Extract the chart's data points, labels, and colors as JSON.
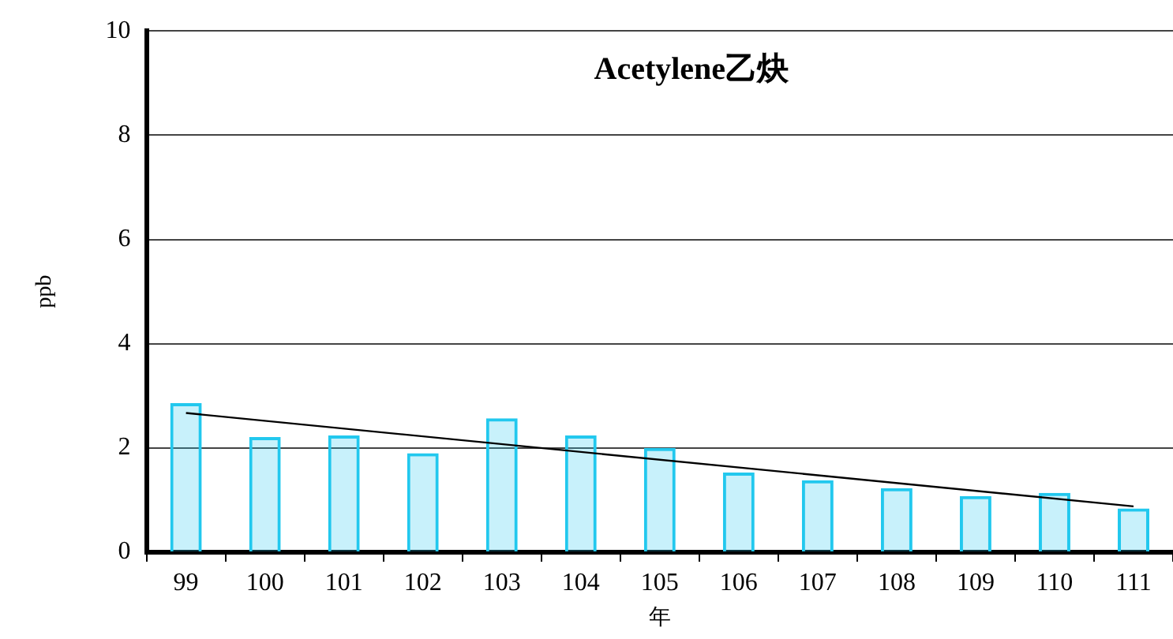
{
  "chart_data": {
    "type": "bar",
    "title": "Acetylene乙炔",
    "xlabel": "年",
    "ylabel": "ppb",
    "categories": [
      "99",
      "100",
      "101",
      "102",
      "103",
      "104",
      "105",
      "106",
      "107",
      "108",
      "109",
      "110",
      "111"
    ],
    "series": [
      {
        "color": "#22c8ee",
        "values": [
          2.86,
          2.21,
          2.24,
          1.9,
          2.57,
          2.24,
          2.0,
          1.53,
          1.38,
          1.23,
          1.08,
          1.14,
          0.84
        ]
      },
      {
        "type": "line",
        "color": "#000000",
        "x": [
          "99",
          "111"
        ],
        "values": [
          2.67,
          0.88
        ]
      }
    ],
    "ylim": [
      0,
      10
    ],
    "yticks": [
      0,
      2,
      4,
      6,
      8,
      10
    ],
    "grid": "y",
    "legend": false
  }
}
